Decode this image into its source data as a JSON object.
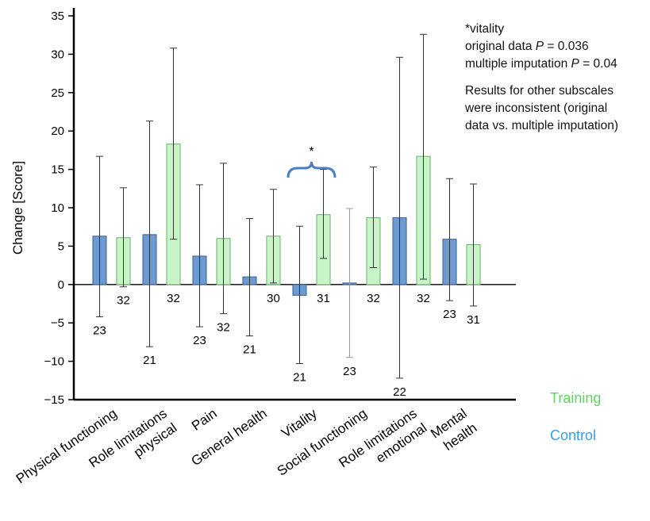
{
  "chart_data": {
    "type": "bar",
    "ylabel": "Change [Score]",
    "ylim": [
      -15,
      35
    ],
    "yticks": [
      -15,
      -10,
      -5,
      0,
      5,
      10,
      15,
      20,
      25,
      30,
      35
    ],
    "categories": [
      [
        "Physical functioning"
      ],
      [
        "Role limitations",
        "physical"
      ],
      [
        "Pain"
      ],
      [
        "General health"
      ],
      [
        "Vitality"
      ],
      [
        "Social functioning"
      ],
      [
        "Role limitations",
        "emotional"
      ],
      [
        "Mental",
        "health"
      ]
    ],
    "series": [
      {
        "name": "Control",
        "color": "#6b9bd2",
        "values": [
          6.3,
          6.5,
          3.7,
          1.0,
          -1.4,
          0.2,
          8.7,
          5.9
        ],
        "err_low": [
          -4.2,
          -8.1,
          -5.5,
          -6.7,
          -10.3,
          -9.5,
          -12.2,
          -2.1
        ],
        "err_high": [
          16.7,
          21.3,
          13.0,
          8.6,
          7.6,
          9.9,
          29.6,
          13.8
        ],
        "n": [
          "23",
          "21",
          "23",
          "21",
          "21",
          "23",
          "22",
          "23"
        ]
      },
      {
        "name": "Training",
        "color": "#c8f5c8",
        "values": [
          6.1,
          18.3,
          6.0,
          6.3,
          9.1,
          8.7,
          16.7,
          5.2
        ],
        "err_low": [
          -0.3,
          5.9,
          -3.8,
          0.2,
          3.4,
          2.2,
          0.7,
          -2.8
        ],
        "err_high": [
          12.6,
          30.8,
          15.8,
          12.4,
          15.0,
          15.3,
          32.6,
          13.1
        ],
        "n": [
          "32",
          "32",
          "32",
          "30",
          "31",
          "32",
          "32",
          "31"
        ]
      }
    ],
    "annotation": {
      "symbol": "*",
      "category_index": 4
    },
    "legend": [
      {
        "label": "Training",
        "color": "#5cd65c"
      },
      {
        "label": "Control",
        "color": "#3a9ce8"
      }
    ]
  },
  "note": {
    "line1": "*vitality",
    "line2a": "original data ",
    "p": "P",
    "line2b": " = 0.036",
    "line3a": "multiple imputation ",
    "line3b": " = 0.04",
    "line4": "Results for other subscales",
    "line5": "were inconsistent (original",
    "line6": "data vs. multiple imputation)"
  }
}
